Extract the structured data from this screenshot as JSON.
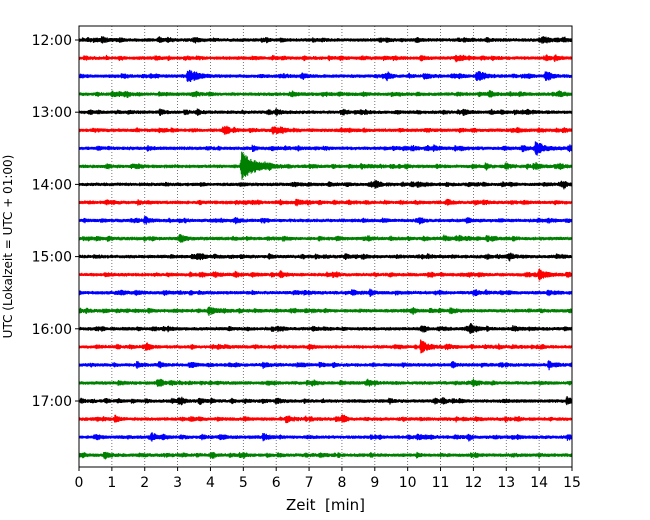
{
  "chart_data": {
    "type": "line",
    "xlabel": "Zeit  [min]",
    "ylabel": "UTC (Lokalzeit = UTC + 01:00)",
    "xlim": [
      0,
      15
    ],
    "x_ticks": [
      "0",
      "1",
      "2",
      "3",
      "4",
      "5",
      "6",
      "7",
      "8",
      "9",
      "10",
      "11",
      "12",
      "13",
      "14",
      "15"
    ],
    "y_ticks": [
      "12:00",
      "13:00",
      "14:00",
      "15:00",
      "16:00",
      "17:00"
    ],
    "trace_interval_min": 15,
    "start_time": "12:00",
    "grid": "vertical dotted at each minute",
    "colors": [
      "#000000",
      "#ff0000",
      "#0000ff",
      "#008000"
    ],
    "series": [
      {
        "start": "12:00",
        "color": "#000000",
        "events": [
          {
            "t": 0.7,
            "amp": 0.35
          },
          {
            "t": 3.5,
            "amp": 0.3
          },
          {
            "t": 14.1,
            "amp": 0.3
          }
        ]
      },
      {
        "start": "12:15",
        "color": "#ff0000",
        "events": [
          {
            "t": 11.6,
            "amp": 0.2
          }
        ]
      },
      {
        "start": "12:30",
        "color": "#0000ff",
        "events": [
          {
            "t": 3.3,
            "amp": 0.9
          },
          {
            "t": 12.1,
            "amp": 0.6
          },
          {
            "t": 14.2,
            "amp": 0.45
          },
          {
            "t": 10.5,
            "amp": 0.35
          }
        ]
      },
      {
        "start": "12:45",
        "color": "#008000",
        "events": [
          {
            "t": 1.0,
            "amp": 0.3
          },
          {
            "t": 14.6,
            "amp": 0.3
          }
        ]
      },
      {
        "start": "13:00",
        "color": "#000000",
        "events": [
          {
            "t": 6.0,
            "amp": 0.3
          },
          {
            "t": 11.7,
            "amp": 0.3
          }
        ]
      },
      {
        "start": "13:15",
        "color": "#ff0000",
        "events": [
          {
            "t": 5.9,
            "amp": 0.55
          }
        ]
      },
      {
        "start": "13:30",
        "color": "#0000ff",
        "events": [
          {
            "t": 13.9,
            "amp": 0.9
          },
          {
            "t": 10.8,
            "amp": 0.3
          }
        ]
      },
      {
        "start": "13:45",
        "color": "#008000",
        "events": [
          {
            "t": 4.95,
            "amp": 2.0
          },
          {
            "t": 13.9,
            "amp": 0.3
          }
        ]
      },
      {
        "start": "14:00",
        "color": "#000000",
        "events": [
          {
            "t": 9.0,
            "amp": 0.3
          }
        ]
      },
      {
        "start": "14:15",
        "color": "#ff0000",
        "events": [
          {
            "t": 6.6,
            "amp": 0.3
          }
        ]
      },
      {
        "start": "14:30",
        "color": "#0000ff",
        "events": [
          {
            "t": 2.0,
            "amp": 0.35
          }
        ]
      },
      {
        "start": "14:45",
        "color": "#008000",
        "events": [
          {
            "t": 3.05,
            "amp": 0.5
          },
          {
            "t": 11.1,
            "amp": 0.3
          }
        ]
      },
      {
        "start": "15:00",
        "color": "#000000",
        "events": [
          {
            "t": 3.6,
            "amp": 0.3
          },
          {
            "t": 13.1,
            "amp": 0.35
          }
        ]
      },
      {
        "start": "15:15",
        "color": "#ff0000",
        "events": [
          {
            "t": 14.0,
            "amp": 0.65
          },
          {
            "t": 4.1,
            "amp": 0.3
          }
        ]
      },
      {
        "start": "15:30",
        "color": "#0000ff",
        "events": [
          {
            "t": 8.3,
            "amp": 0.3
          }
        ]
      },
      {
        "start": "15:45",
        "color": "#008000",
        "events": [
          {
            "t": 3.95,
            "amp": 0.6
          },
          {
            "t": 11.3,
            "amp": 0.3
          }
        ]
      },
      {
        "start": "16:00",
        "color": "#000000",
        "events": [
          {
            "t": 11.9,
            "amp": 0.4
          },
          {
            "t": 13.2,
            "amp": 0.3
          }
        ]
      },
      {
        "start": "16:15",
        "color": "#ff0000",
        "events": [
          {
            "t": 10.4,
            "amp": 0.8
          }
        ]
      },
      {
        "start": "16:30",
        "color": "#0000ff",
        "events": [
          {
            "t": 5.6,
            "amp": 0.3
          }
        ]
      },
      {
        "start": "16:45",
        "color": "#008000",
        "events": [
          {
            "t": 12.0,
            "amp": 0.3
          },
          {
            "t": 7.1,
            "amp": 0.3
          }
        ]
      },
      {
        "start": "17:00",
        "color": "#000000",
        "events": [
          {
            "t": 14.85,
            "amp": 0.45
          },
          {
            "t": 6.0,
            "amp": 0.3
          }
        ]
      },
      {
        "start": "17:15",
        "color": "#ff0000",
        "events": [
          {
            "t": 6.3,
            "amp": 0.45
          }
        ]
      },
      {
        "start": "17:30",
        "color": "#0000ff",
        "events": [
          {
            "t": 2.2,
            "amp": 0.5
          },
          {
            "t": 5.6,
            "amp": 0.4
          },
          {
            "t": 10.3,
            "amp": 0.3
          }
        ]
      },
      {
        "start": "17:45",
        "color": "#008000",
        "events": [
          {
            "t": 0.8,
            "amp": 0.3
          },
          {
            "t": 4.0,
            "amp": 0.25
          }
        ]
      }
    ]
  }
}
